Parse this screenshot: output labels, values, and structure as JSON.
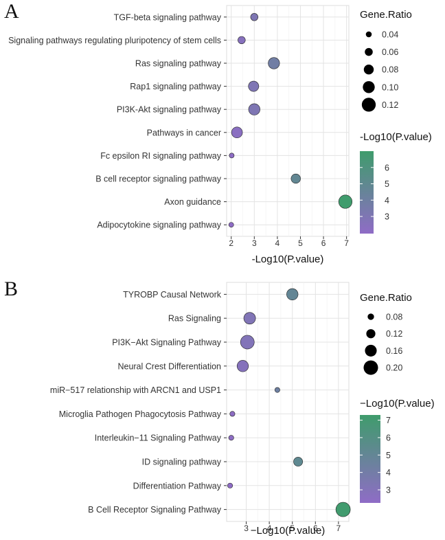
{
  "chart_data": [
    {
      "type": "scatter",
      "panel_letter": "A",
      "xlabel": "-Log10(P.value)",
      "xlim": [
        1.8,
        7.1
      ],
      "x_ticks": [
        "2",
        "3",
        "4",
        "5",
        "6",
        "7"
      ],
      "categories": [
        "TGF-beta signaling pathway",
        "Signaling pathways regulating pluripotency of stem cells",
        "Ras signaling pathway",
        "Rap1 signaling pathway",
        "PI3K-Akt signaling pathway",
        "Pathways in cancer",
        "Fc epsilon RI signaling pathway",
        "B cell receptor signaling pathway",
        "Axon guidance",
        "Adipocytokine signaling pathway"
      ],
      "x_values": [
        3.0,
        2.45,
        3.85,
        2.97,
        3.0,
        2.25,
        2.02,
        4.8,
        6.95,
        2.0
      ],
      "gene_ratio": [
        0.055,
        0.055,
        0.095,
        0.085,
        0.095,
        0.09,
        0.03,
        0.075,
        0.115,
        0.03
      ],
      "size_legend": {
        "title": "Gene.Ratio",
        "labels": [
          "0.04",
          "0.06",
          "0.08",
          "0.10",
          "0.12"
        ],
        "values": [
          0.04,
          0.06,
          0.08,
          0.1,
          0.12
        ],
        "range": [
          0.025,
          0.125
        ]
      },
      "color_legend": {
        "title": "-Log10(P.value)",
        "labels": [
          "3",
          "4",
          "5",
          "6"
        ],
        "values": [
          3,
          4,
          5,
          6
        ],
        "range": [
          1.95,
          7.0
        ],
        "low_color": "#8f6cc6",
        "high_color": "#3f9c6c"
      }
    },
    {
      "type": "scatter",
      "panel_letter": "B",
      "xlabel": "−Log10(P.value)",
      "xlim": [
        2.15,
        7.45
      ],
      "x_ticks": [
        "3",
        "4",
        "5",
        "6",
        "7"
      ],
      "categories": [
        "TYROBP Causal Network",
        "Ras Signaling",
        "PI3K−Akt Signaling Pathway",
        "Neural Crest Differentiation",
        "miR−517 relationship with ARCN1 and USP1",
        "Microglia Pathogen Phagocytosis Pathway",
        "Interleukin−11 Signaling Pathway",
        "ID signaling pathway",
        "Differentiation Pathway",
        "B Cell Receptor Signaling Pathway"
      ],
      "x_values": [
        5.0,
        3.15,
        3.05,
        2.85,
        4.35,
        2.4,
        2.35,
        5.25,
        2.3,
        7.2
      ],
      "gene_ratio": [
        0.155,
        0.16,
        0.19,
        0.155,
        0.06,
        0.06,
        0.06,
        0.12,
        0.06,
        0.2
      ],
      "size_legend": {
        "title": "Gene.Ratio",
        "labels": [
          "0.08",
          "0.12",
          "0.16",
          "0.20"
        ],
        "values": [
          0.08,
          0.12,
          0.16,
          0.2
        ],
        "range": [
          0.05,
          0.21
        ]
      },
      "color_legend": {
        "title": "−Log10(P.value)",
        "labels": [
          "3",
          "4",
          "5",
          "6",
          "7"
        ],
        "values": [
          3,
          4,
          5,
          6,
          7
        ],
        "range": [
          2.25,
          7.3
        ],
        "low_color": "#8f6cc6",
        "high_color": "#3f9c6c"
      }
    }
  ]
}
